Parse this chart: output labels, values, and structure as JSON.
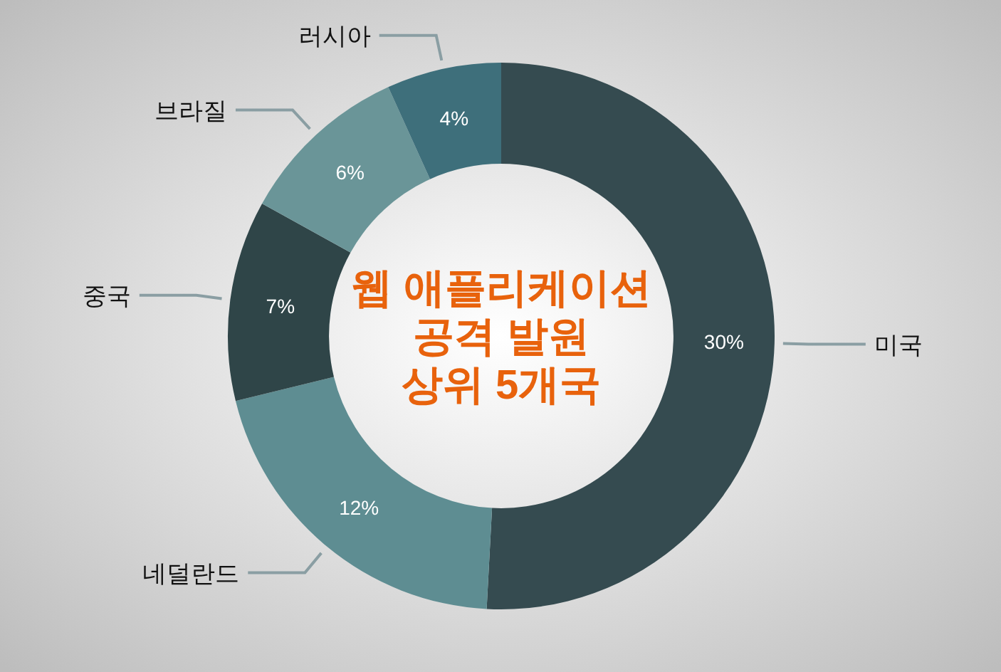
{
  "chart_data": {
    "type": "donut",
    "title": "웹 애플리케이션\n공격 발원\n상위 5개국",
    "categories": [
      "미국",
      "네덜란드",
      "중국",
      "브라질",
      "러시아"
    ],
    "values": [
      30,
      12,
      7,
      6,
      4
    ],
    "value_labels": [
      "30%",
      "12%",
      "7%",
      "6%",
      "4%"
    ],
    "colors": [
      "#354b50",
      "#5e8d92",
      "#2f4548",
      "#6a9598",
      "#3e6f7b"
    ]
  }
}
